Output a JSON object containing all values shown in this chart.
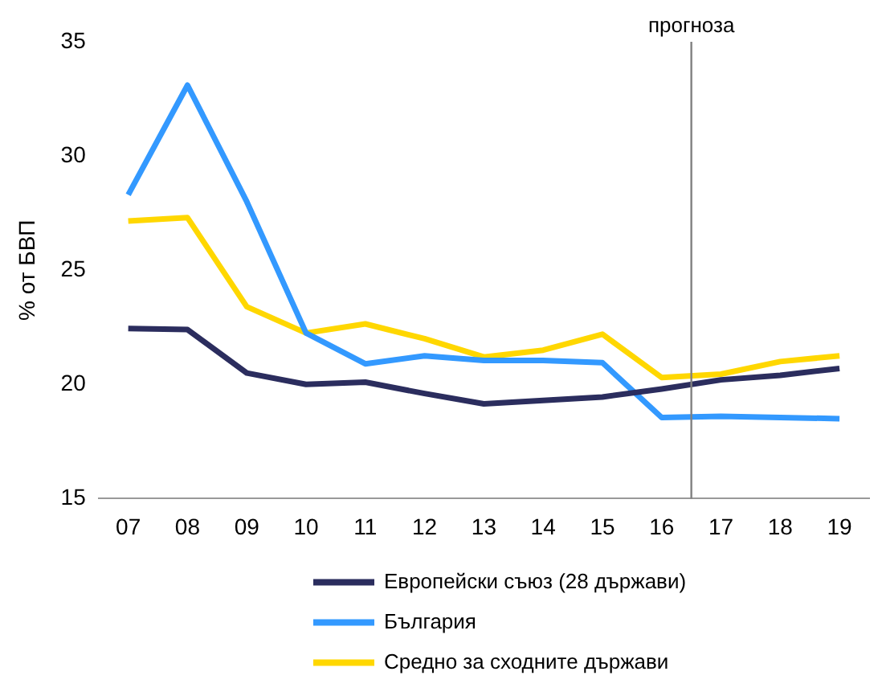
{
  "chart_data": {
    "type": "line",
    "ylabel": "% от БВП",
    "x": [
      7,
      8,
      9,
      10,
      11,
      12,
      13,
      14,
      15,
      16,
      17,
      18,
      19
    ],
    "xlim": [
      6.5,
      19.5
    ],
    "xticks": [
      {
        "value": 7,
        "label": "07"
      },
      {
        "value": 8,
        "label": "08"
      },
      {
        "value": 9,
        "label": "09"
      },
      10,
      11,
      12,
      13,
      14,
      15,
      16,
      17,
      18,
      19
    ],
    "ylim": [
      15,
      35
    ],
    "yticks": [
      15,
      20,
      25,
      30,
      35
    ],
    "series": [
      {
        "name": "Европейски съюз (28 държави)",
        "color": "#2b2d5e",
        "values": [
          22.45,
          22.4,
          20.5,
          20.0,
          20.1,
          19.6,
          19.15,
          19.3,
          19.45,
          19.8,
          20.2,
          20.4,
          20.7
        ]
      },
      {
        "name": "България",
        "color": "#3399ff",
        "values": [
          28.3,
          33.1,
          28.0,
          22.25,
          20.9,
          21.25,
          21.05,
          21.05,
          20.95,
          18.55,
          18.6,
          18.55,
          18.5
        ]
      },
      {
        "name": "Средно за сходните държави",
        "color": "#ffd700",
        "values": [
          27.15,
          27.3,
          23.4,
          22.25,
          22.65,
          22.0,
          21.2,
          21.5,
          22.2,
          20.3,
          20.45,
          21.0,
          21.25
        ]
      }
    ],
    "ref_lines": [
      {
        "axis": "x",
        "value": 16.5,
        "label": "прогноза",
        "color": "#808080"
      }
    ],
    "grid": false,
    "legend": "bottom",
    "marker": "none",
    "line_style": "solid"
  }
}
